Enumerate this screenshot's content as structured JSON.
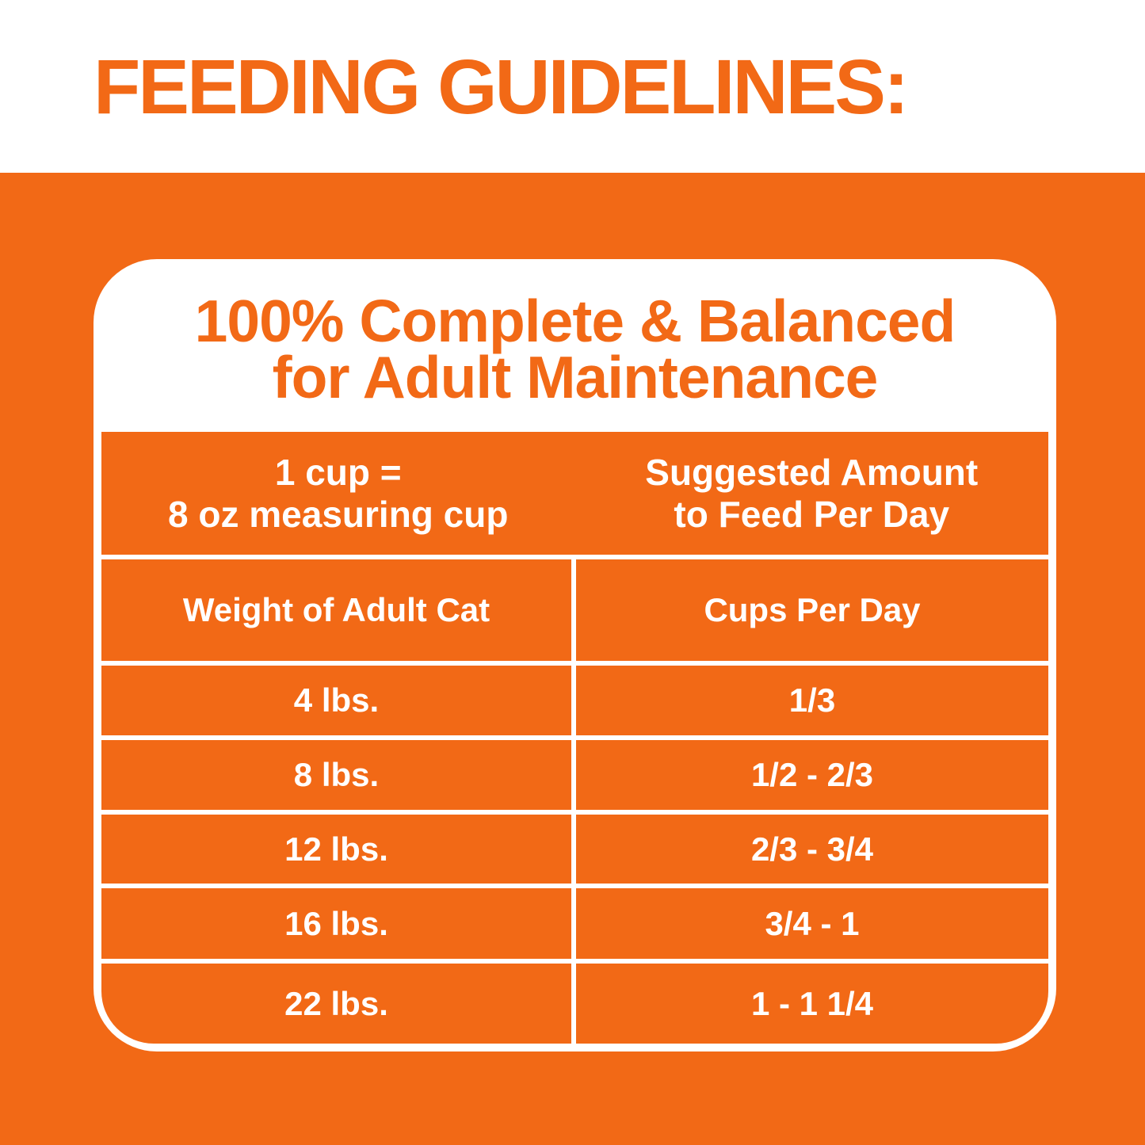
{
  "page": {
    "title": "FEEDING GUIDELINES:",
    "colors": {
      "orange": "#F26916",
      "white": "#FFFFFF"
    }
  },
  "card": {
    "heading_line1": "100% Complete & Balanced",
    "heading_line2": "for Adult Maintenance",
    "measure_note": {
      "line1": "1 cup =",
      "line2": "8 oz measuring cup"
    },
    "suggested_note": {
      "line1": "Suggested Amount",
      "line2": "to Feed Per Day"
    },
    "table": {
      "col_weight_header": "Weight of Adult Cat",
      "col_cups_header": "Cups Per Day",
      "rows": [
        {
          "weight": "4 lbs.",
          "cups": "1/3"
        },
        {
          "weight": "8 lbs.",
          "cups": "1/2 - 2/3"
        },
        {
          "weight": "12 lbs.",
          "cups": "2/3 - 3/4"
        },
        {
          "weight": "16 lbs.",
          "cups": "3/4 - 1"
        },
        {
          "weight": "22 lbs.",
          "cups": "1 - 1 1/4"
        }
      ]
    }
  }
}
